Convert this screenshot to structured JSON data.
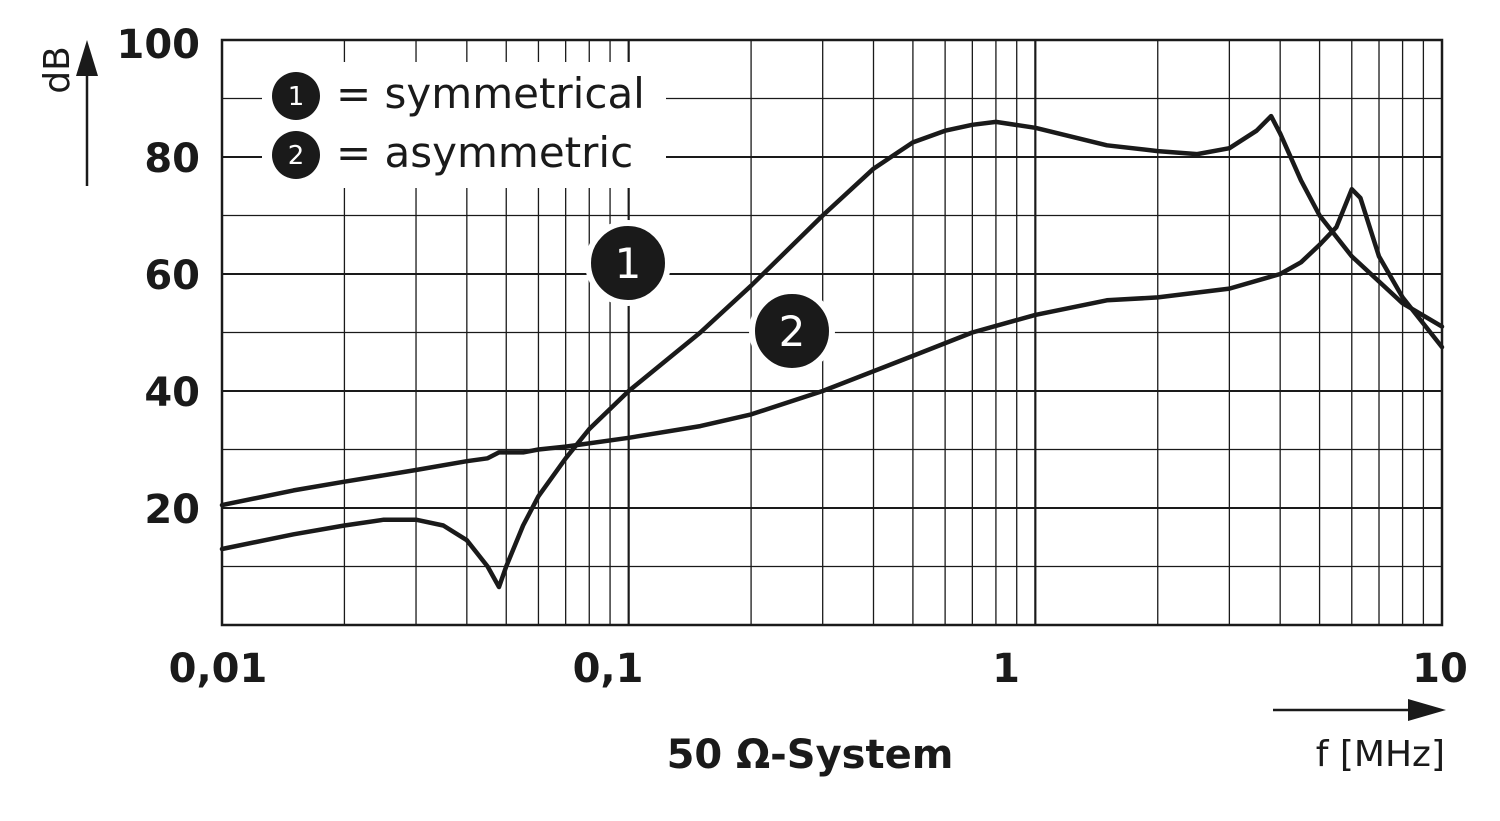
{
  "chart_data": {
    "type": "line",
    "x_scale": "log",
    "xlim": [
      0.01,
      10
    ],
    "ylim": [
      0,
      100
    ],
    "grid": true,
    "x_ticks": [
      "0,01",
      "0,1",
      "1",
      "10"
    ],
    "y_ticks": [
      "20",
      "40",
      "60",
      "80",
      "100"
    ],
    "xlabel": "f [MHz]",
    "ylabel": "dB",
    "footer": "50 Ω-System",
    "legend_placement": "top-left",
    "legend": [
      {
        "marker": "1",
        "text": "= symmetrical"
      },
      {
        "marker": "2",
        "text": "= asymmetric"
      }
    ],
    "series": [
      {
        "marker": "1",
        "x": [
          0.01,
          0.015,
          0.02,
          0.025,
          0.03,
          0.035,
          0.04,
          0.045,
          0.048,
          0.05,
          0.055,
          0.06,
          0.07,
          0.08,
          0.1,
          0.15,
          0.2,
          0.3,
          0.4,
          0.5,
          0.6,
          0.7,
          0.8,
          1,
          1.5,
          2,
          2.5,
          3,
          3.5,
          3.8,
          4,
          4.5,
          5,
          6,
          8,
          10
        ],
        "y": [
          13,
          15.5,
          17,
          18,
          18,
          17,
          14.5,
          10,
          6.5,
          10,
          17,
          22,
          28.5,
          33.5,
          40,
          50,
          58,
          70,
          78,
          82.5,
          84.5,
          85.5,
          86,
          85,
          82,
          81,
          80.5,
          81.5,
          84.5,
          87,
          84,
          76,
          70,
          63,
          55,
          51
        ]
      },
      {
        "marker": "2",
        "x": [
          0.01,
          0.015,
          0.02,
          0.03,
          0.04,
          0.045,
          0.048,
          0.055,
          0.06,
          0.07,
          0.1,
          0.15,
          0.2,
          0.3,
          0.5,
          0.7,
          1,
          1.5,
          2,
          3,
          4,
          4.5,
          5,
          5.5,
          6,
          6.3,
          7,
          8,
          10
        ],
        "y": [
          20.5,
          23,
          24.5,
          26.5,
          28,
          28.5,
          29.5,
          29.5,
          30,
          30.5,
          32,
          34,
          36,
          40,
          46,
          50,
          53,
          55.5,
          56,
          57.5,
          60,
          62,
          65,
          68,
          74.5,
          73,
          63,
          56,
          47.5
        ]
      }
    ]
  }
}
